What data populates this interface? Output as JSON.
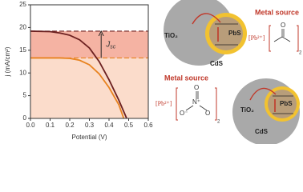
{
  "chart_data": {
    "type": "line",
    "x_label": "Potential (V)",
    "y_label": "j (mA/cm²)",
    "x": [
      0,
      0.1,
      0.15,
      0.2,
      0.25,
      0.3,
      0.35,
      0.4,
      0.45,
      0.475,
      0.49
    ],
    "series": [
      {
        "color": "#6b1f1f",
        "values": [
          19.2,
          19.1,
          18.8,
          18.3,
          17.3,
          15.5,
          12.5,
          8.5,
          4,
          1.5,
          0
        ]
      },
      {
        "color": "#e8821e",
        "values": [
          13.3,
          13.3,
          13.3,
          13.2,
          12.8,
          11.8,
          9.8,
          6.8,
          3,
          0,
          null
        ]
      }
    ],
    "band_colors": [
      "#f5b3a3",
      "#fbdccb"
    ],
    "annotation": {
      "main": "J",
      "sub": "sc"
    },
    "xlim": [
      0,
      0.6
    ],
    "xticks": [
      {
        "value": 0,
        "label": "0.0"
      },
      0.1,
      0.2,
      0.3,
      0.4,
      0.5,
      0.6
    ],
    "ylim": [
      0,
      25
    ],
    "yticks": [
      0,
      5,
      10,
      15,
      20,
      25
    ]
  },
  "diagram": {
    "top": {
      "source": "Metal source",
      "ion": "[Pb²⁺]",
      "atom": "O",
      "count": "2",
      "shell": "CdS",
      "core": "TiO₂",
      "dot": "PbS"
    },
    "bottom": {
      "source": "Metal source",
      "ion": "[Pb²⁺]",
      "atom_n": "N⁺",
      "atom_o1": "O⁻",
      "atom_o2": "O",
      "count": "2",
      "shell": "CdS",
      "core": "TiO₂",
      "dot": "PbS"
    }
  }
}
